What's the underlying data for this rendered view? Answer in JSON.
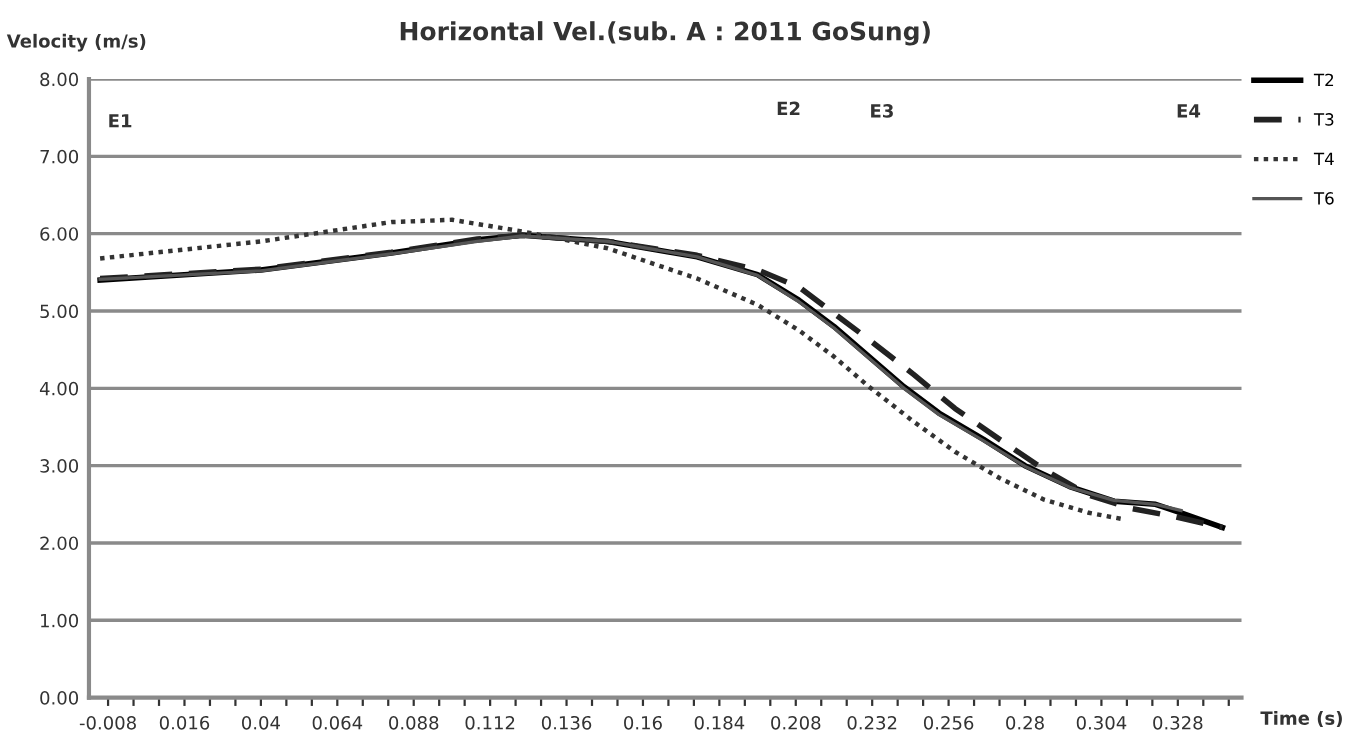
{
  "chart_data": {
    "type": "line",
    "title": "Horizontal Vel.(sub. A : 2011 GoSung)",
    "xlabel": "Time (s)",
    "ylabel": "Velocity (m/s)",
    "xlim": [
      -0.014,
      0.348
    ],
    "ylim": [
      0,
      8
    ],
    "xticks": [
      -0.008,
      {
        "value": 0.0,
        "label": null
      },
      {
        "value": 0.008,
        "label": null
      },
      0.016,
      {
        "value": 0.024,
        "label": null
      },
      {
        "value": 0.032,
        "label": null
      },
      0.04,
      {
        "value": 0.048,
        "label": null
      },
      {
        "value": 0.056,
        "label": null
      },
      0.064,
      {
        "value": 0.072,
        "label": null
      },
      {
        "value": 0.08,
        "label": null
      },
      0.088,
      {
        "value": 0.096,
        "label": null
      },
      {
        "value": 0.104,
        "label": null
      },
      0.112,
      {
        "value": 0.12,
        "label": null
      },
      {
        "value": 0.128,
        "label": null
      },
      0.136,
      {
        "value": 0.144,
        "label": null
      },
      {
        "value": 0.152,
        "label": null
      },
      0.16,
      {
        "value": 0.168,
        "label": null
      },
      {
        "value": 0.176,
        "label": null
      },
      0.184,
      {
        "value": 0.192,
        "label": null
      },
      {
        "value": 0.2,
        "label": null
      },
      0.208,
      {
        "value": 0.216,
        "label": null
      },
      {
        "value": 0.224,
        "label": null
      },
      0.232,
      {
        "value": 0.24,
        "label": null
      },
      {
        "value": 0.248,
        "label": null
      },
      0.256,
      {
        "value": 0.264,
        "label": null
      },
      {
        "value": 0.272,
        "label": null
      },
      0.28,
      {
        "value": 0.288,
        "label": null
      },
      {
        "value": 0.296,
        "label": null
      },
      0.304,
      {
        "value": 0.312,
        "label": null
      },
      {
        "value": 0.32,
        "label": null
      },
      0.328,
      {
        "value": 0.336,
        "label": null
      },
      {
        "value": 0.344,
        "label": null
      }
    ],
    "yticks": [
      {
        "value": 0,
        "label": "0.00"
      },
      {
        "value": 1,
        "label": "1.00"
      },
      {
        "value": 2,
        "label": "2.00"
      },
      {
        "value": 3,
        "label": "3.00"
      },
      {
        "value": 4,
        "label": "4.00"
      },
      {
        "value": 5,
        "label": "5.00"
      },
      {
        "value": 6,
        "label": "6.00"
      },
      {
        "value": 7,
        "label": "7.00"
      },
      {
        "value": 8,
        "label": "8.00"
      }
    ],
    "grid": "y",
    "legend": "top right",
    "marker": "none",
    "annotations": [
      "E1",
      "E2",
      "E3",
      "E4"
    ],
    "series": [
      {
        "name": "T2",
        "color": "#000000",
        "line_style": "solid",
        "x": [
          -0.0105,
          0.04,
          0.081,
          0.108,
          0.122,
          0.149,
          0.177,
          0.196,
          0.209,
          0.22,
          0.231,
          0.242,
          0.253,
          0.267,
          0.28,
          0.294,
          0.308,
          0.321,
          0.329,
          0.342
        ],
        "values": [
          5.4,
          5.53,
          5.75,
          5.92,
          5.98,
          5.9,
          5.7,
          5.47,
          5.14,
          4.8,
          4.41,
          4.02,
          3.68,
          3.34,
          3.0,
          2.73,
          2.54,
          2.5,
          2.39,
          2.2
        ]
      },
      {
        "name": "T3",
        "color": "#222222",
        "line_style": "dashed",
        "x": [
          -0.0105,
          0.04,
          0.081,
          0.108,
          0.122,
          0.149,
          0.177,
          0.196,
          0.209,
          0.22,
          0.231,
          0.245,
          0.258,
          0.272,
          0.286,
          0.3,
          0.313,
          0.327,
          0.342
        ],
        "values": [
          5.42,
          5.54,
          5.76,
          5.93,
          5.98,
          5.9,
          5.72,
          5.53,
          5.31,
          4.97,
          4.63,
          4.18,
          3.74,
          3.34,
          2.95,
          2.62,
          2.45,
          2.34,
          2.2
        ]
      },
      {
        "name": "T4",
        "color": "#333333",
        "line_style": "dotted",
        "x": [
          -0.0105,
          0.04,
          0.081,
          0.1,
          0.122,
          0.149,
          0.177,
          0.196,
          0.209,
          0.22,
          0.231,
          0.245,
          0.258,
          0.272,
          0.286,
          0.3,
          0.3105
        ],
        "values": [
          5.68,
          5.9,
          6.15,
          6.18,
          6.03,
          5.81,
          5.42,
          5.08,
          4.75,
          4.41,
          4.02,
          3.57,
          3.18,
          2.84,
          2.56,
          2.39,
          2.31
        ]
      },
      {
        "name": "T6",
        "color": "#555555",
        "line_style": "solid",
        "x": [
          -0.0105,
          0.04,
          0.081,
          0.108,
          0.122,
          0.149,
          0.177,
          0.196,
          0.209,
          0.22,
          0.231,
          0.242,
          0.253,
          0.267,
          0.28,
          0.294,
          0.308,
          0.321,
          0.329
        ],
        "values": [
          5.41,
          5.52,
          5.74,
          5.9,
          5.97,
          5.9,
          5.7,
          5.46,
          5.12,
          4.78,
          4.39,
          4.0,
          3.66,
          3.32,
          2.99,
          2.72,
          2.55,
          2.5,
          2.42
        ]
      }
    ]
  }
}
